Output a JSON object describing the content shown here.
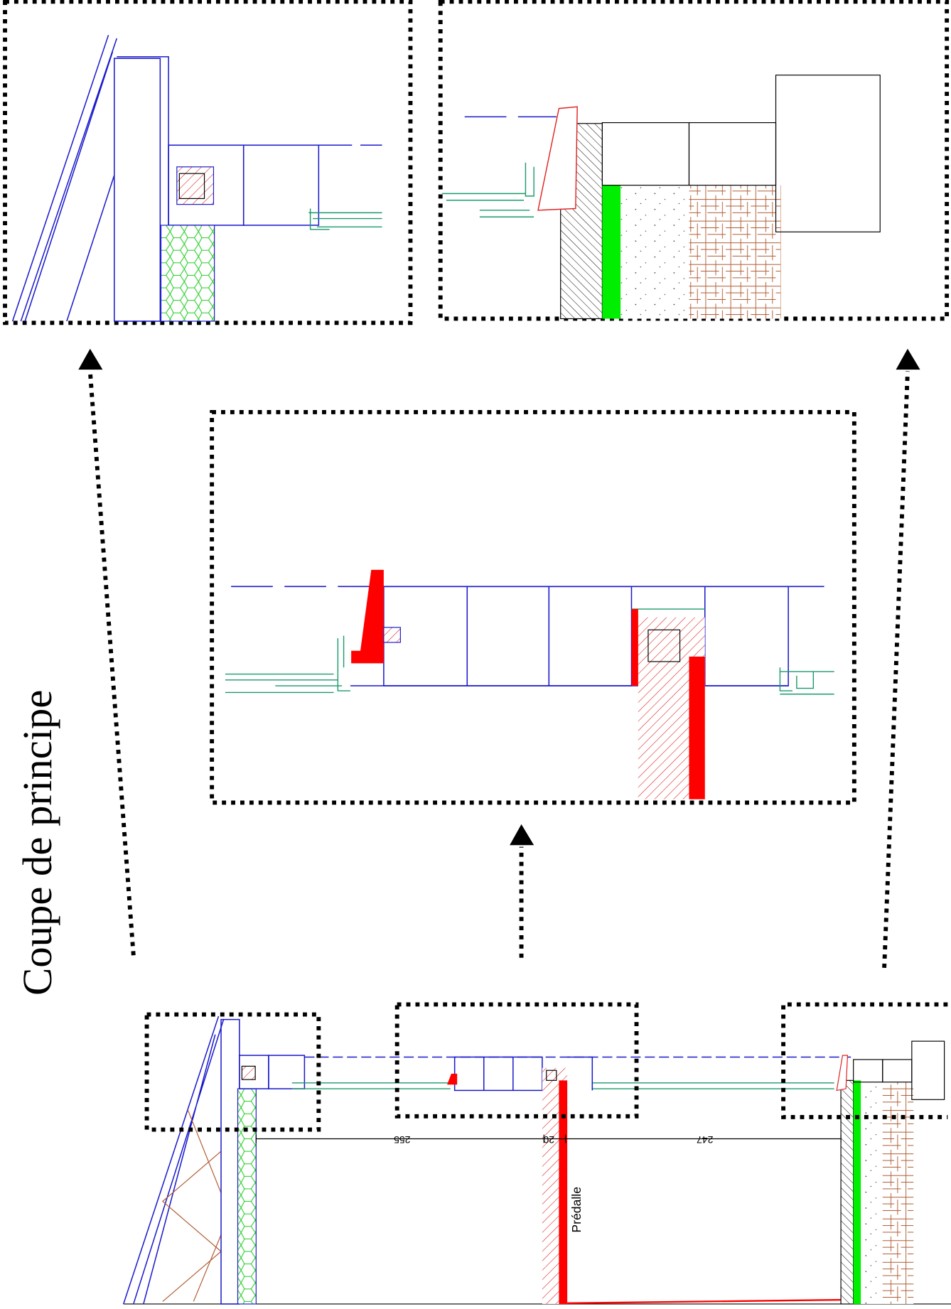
{
  "title": "Coupe de principe",
  "labels": {
    "predalle": "Prédalle"
  },
  "dimensions": [
    "255",
    "20",
    "247"
  ]
}
